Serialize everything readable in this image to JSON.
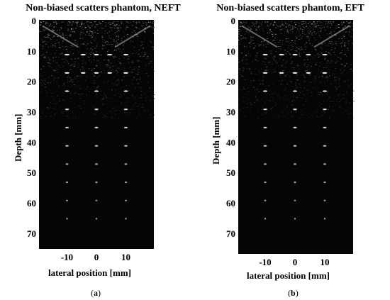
{
  "panels": [
    {
      "id": "a",
      "title": "Non-biased scatters phantom, NEFT",
      "ylabel": "Depth [mm]",
      "xlabel": "lateral position [mm]",
      "caption_label": "a",
      "y_ticks": [
        "0",
        "10",
        "20",
        "30",
        "40",
        "50",
        "60",
        "70"
      ],
      "x_ticks": [
        "-10",
        "0",
        "10"
      ]
    },
    {
      "id": "b",
      "title": "Non-biased scatters phantom, EFT",
      "ylabel": "Depth [mm]",
      "xlabel": "lateral position [mm]",
      "caption_label": "b",
      "y_ticks": [
        "0",
        "10",
        "20",
        "30",
        "40",
        "50",
        "60",
        "70"
      ],
      "x_ticks": [
        "-10",
        "0",
        "10"
      ]
    }
  ]
}
